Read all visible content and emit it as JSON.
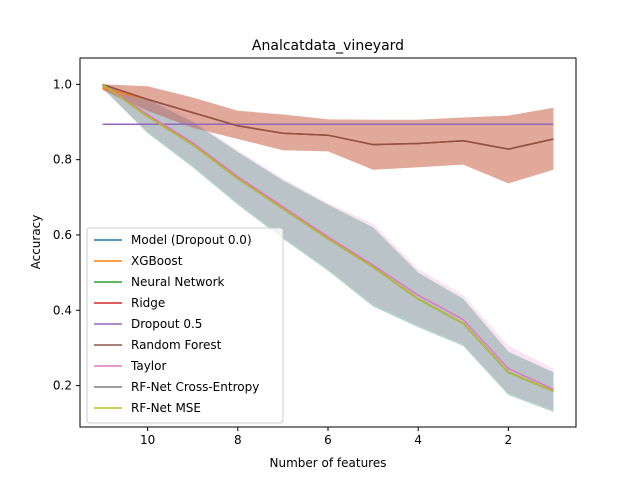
{
  "chart_data": {
    "type": "line",
    "title": "Analcatdata_vineyard",
    "xlabel": "Number of features",
    "ylabel": "Accuracy",
    "xlim": [
      11.5,
      0.5
    ],
    "ylim": [
      0.09,
      1.07
    ],
    "x_ticks": [
      10,
      8,
      6,
      4,
      2
    ],
    "y_ticks": [
      0.2,
      0.4,
      0.6,
      0.8,
      1.0
    ],
    "x_tick_labels": [
      "10",
      "8",
      "6",
      "4",
      "2"
    ],
    "y_tick_labels": [
      "0.2",
      "0.4",
      "0.6",
      "0.8",
      "1.0"
    ],
    "grid": false,
    "legend_position": "lower-left",
    "x": [
      11,
      10,
      9,
      8,
      7,
      6,
      5,
      4,
      3,
      2,
      1
    ],
    "series": [
      {
        "name": "Model (Dropout 0.0)",
        "color": "#1f77b4",
        "values": [
          1.0,
          0.915,
          0.84,
          0.75,
          0.67,
          0.59,
          0.515,
          0.43,
          0.365,
          0.235,
          0.185
        ],
        "lower": [
          0.99,
          0.87,
          0.78,
          0.68,
          0.59,
          0.505,
          0.41,
          0.355,
          0.305,
          0.175,
          0.13
        ],
        "upper": [
          1.0,
          0.96,
          0.9,
          0.82,
          0.745,
          0.68,
          0.62,
          0.5,
          0.43,
          0.29,
          0.235
        ]
      },
      {
        "name": "XGBoost",
        "color": "#ff7f0e",
        "values": [
          0.99,
          0.96,
          0.925,
          0.89,
          0.87,
          0.865,
          0.84,
          0.843,
          0.85,
          0.828,
          0.855
        ],
        "lower": [
          0.985,
          0.93,
          0.885,
          0.855,
          0.825,
          0.822,
          0.773,
          0.78,
          0.787,
          0.737,
          0.773
        ],
        "upper": [
          1.0,
          0.995,
          0.965,
          0.93,
          0.92,
          0.907,
          0.906,
          0.906,
          0.912,
          0.917,
          0.938
        ]
      },
      {
        "name": "Neural Network",
        "color": "#2ca02c",
        "values": [
          1.0,
          0.915,
          0.84,
          0.75,
          0.67,
          0.59,
          0.515,
          0.43,
          0.365,
          0.235,
          0.185
        ],
        "lower": [
          0.99,
          0.87,
          0.78,
          0.68,
          0.59,
          0.505,
          0.41,
          0.355,
          0.305,
          0.175,
          0.13
        ],
        "upper": [
          1.0,
          0.96,
          0.9,
          0.82,
          0.745,
          0.68,
          0.62,
          0.5,
          0.43,
          0.29,
          0.235
        ]
      },
      {
        "name": "Ridge",
        "color": "#d62728",
        "values": [
          1.0,
          0.96,
          0.925,
          0.89,
          0.87,
          0.865,
          0.84,
          0.843,
          0.85,
          0.828,
          0.855
        ],
        "lower": [
          0.985,
          0.93,
          0.885,
          0.855,
          0.825,
          0.822,
          0.773,
          0.78,
          0.787,
          0.737,
          0.773
        ],
        "upper": [
          1.0,
          0.995,
          0.965,
          0.93,
          0.92,
          0.907,
          0.906,
          0.906,
          0.912,
          0.917,
          0.938
        ]
      },
      {
        "name": "Dropout 0.5",
        "color": "#9467bd",
        "values": [
          0.894,
          0.894,
          0.894,
          0.894,
          0.894,
          0.894,
          0.894,
          0.894,
          0.894,
          0.894,
          0.894
        ]
      },
      {
        "name": "Random Forest",
        "color": "#8c564b",
        "values": [
          1.0,
          0.96,
          0.925,
          0.89,
          0.87,
          0.865,
          0.84,
          0.843,
          0.85,
          0.828,
          0.855
        ],
        "lower": [
          0.985,
          0.93,
          0.885,
          0.855,
          0.825,
          0.822,
          0.773,
          0.78,
          0.787,
          0.737,
          0.773
        ],
        "upper": [
          1.0,
          0.995,
          0.965,
          0.93,
          0.92,
          0.907,
          0.906,
          0.906,
          0.912,
          0.917,
          0.938
        ]
      },
      {
        "name": "Taylor",
        "color": "#e377c2",
        "values": [
          1.0,
          0.92,
          0.845,
          0.755,
          0.675,
          0.595,
          0.52,
          0.44,
          0.375,
          0.245,
          0.19
        ],
        "lower": [
          0.99,
          0.875,
          0.785,
          0.685,
          0.595,
          0.51,
          0.415,
          0.36,
          0.31,
          0.18,
          0.135
        ],
        "upper": [
          1.0,
          0.965,
          0.905,
          0.825,
          0.75,
          0.685,
          0.63,
          0.51,
          0.44,
          0.305,
          0.245
        ]
      },
      {
        "name": "RF-Net Cross-Entropy",
        "color": "#7f7f7f",
        "values": [
          1.0,
          0.915,
          0.84,
          0.75,
          0.67,
          0.59,
          0.515,
          0.43,
          0.365,
          0.235,
          0.185
        ]
      },
      {
        "name": "RF-Net MSE",
        "color": "#bcbd22",
        "values": [
          1.0,
          0.915,
          0.84,
          0.75,
          0.67,
          0.59,
          0.515,
          0.43,
          0.365,
          0.235,
          0.185
        ]
      }
    ]
  }
}
